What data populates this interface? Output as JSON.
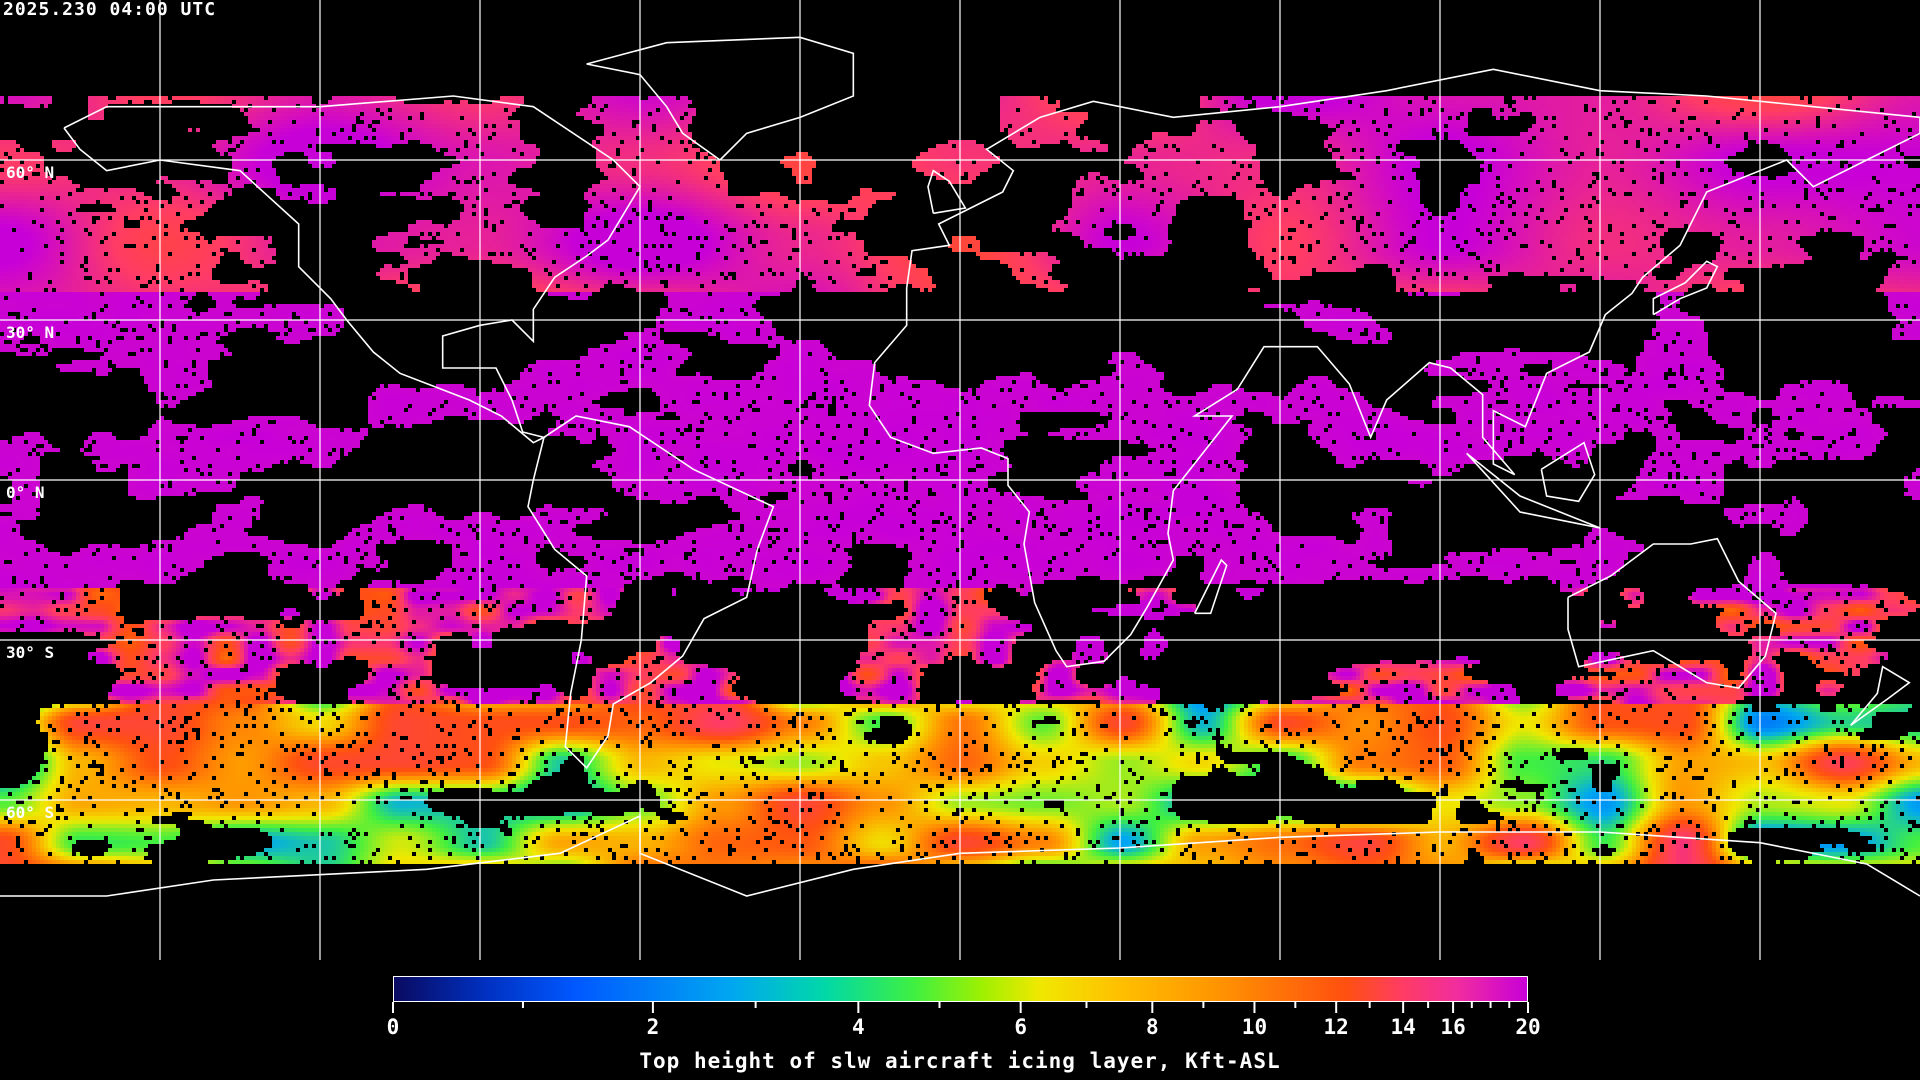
{
  "header": {
    "timestamp": "2025.230 04:00 UTC"
  },
  "map": {
    "projection": "equirectangular",
    "graticule_step_degrees": 30,
    "latitude_labels": [
      "60° N",
      "30° N",
      "0° N",
      "30° S",
      "60° S"
    ],
    "coastline_color": "#ffffff",
    "gridline_color": "#ffffff",
    "no_data_color": "#000000"
  },
  "colorbar": {
    "title": "Top height of slw aircraft icing layer, Kft-ASL",
    "tick_labels": [
      "0",
      "2",
      "4",
      "6",
      "8",
      "10",
      "12",
      "14",
      "16",
      "20"
    ],
    "minor_ticks": [
      1,
      3,
      5,
      7,
      9,
      11,
      13,
      15,
      17,
      18,
      19
    ],
    "range": [
      0,
      20
    ],
    "colors": [
      "#0a0a60",
      "#0058ff",
      "#00a8f0",
      "#40f040",
      "#f0e800",
      "#ff9800",
      "#ff5010",
      "#ff3c64",
      "#c800d8"
    ]
  }
}
